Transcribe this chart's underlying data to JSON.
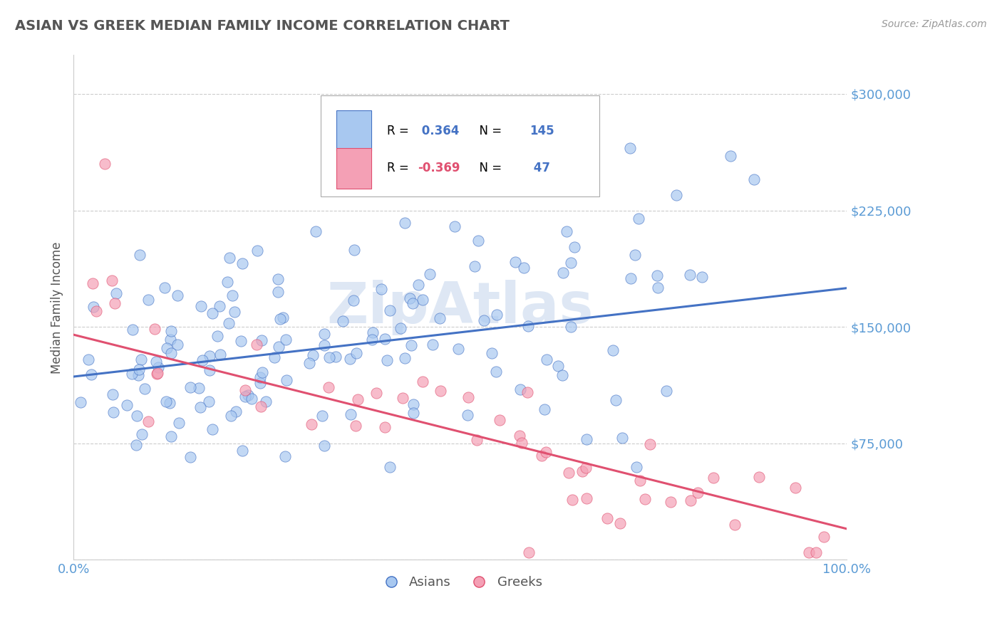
{
  "title": "ASIAN VS GREEK MEDIAN FAMILY INCOME CORRELATION CHART",
  "source_text": "Source: ZipAtlas.com",
  "ylabel": "Median Family Income",
  "xlim": [
    0,
    1.0
  ],
  "ylim": [
    0,
    325000
  ],
  "yticks": [
    0,
    75000,
    150000,
    225000,
    300000
  ],
  "ytick_labels": [
    "",
    "$75,000",
    "$150,000",
    "$225,000",
    "$300,000"
  ],
  "xtick_labels": [
    "0.0%",
    "100.0%"
  ],
  "asian_R": 0.364,
  "asian_N": 145,
  "greek_R": -0.369,
  "greek_N": 47,
  "asian_color": "#a8c8f0",
  "asian_edge_color": "#4472c4",
  "greek_color": "#f4a0b5",
  "greek_edge_color": "#e05070",
  "asian_line_color": "#4472c4",
  "greek_line_color": "#e05070",
  "title_color": "#555555",
  "axis_color": "#5b9bd5",
  "watermark_color": "#c8d8ee",
  "background_color": "#ffffff",
  "grid_color": "#cccccc",
  "asian_trendline_x": [
    0.0,
    1.0
  ],
  "asian_trendline_y": [
    118000,
    175000
  ],
  "greek_trendline_x": [
    0.0,
    1.0
  ],
  "greek_trendline_y": [
    145000,
    20000
  ]
}
